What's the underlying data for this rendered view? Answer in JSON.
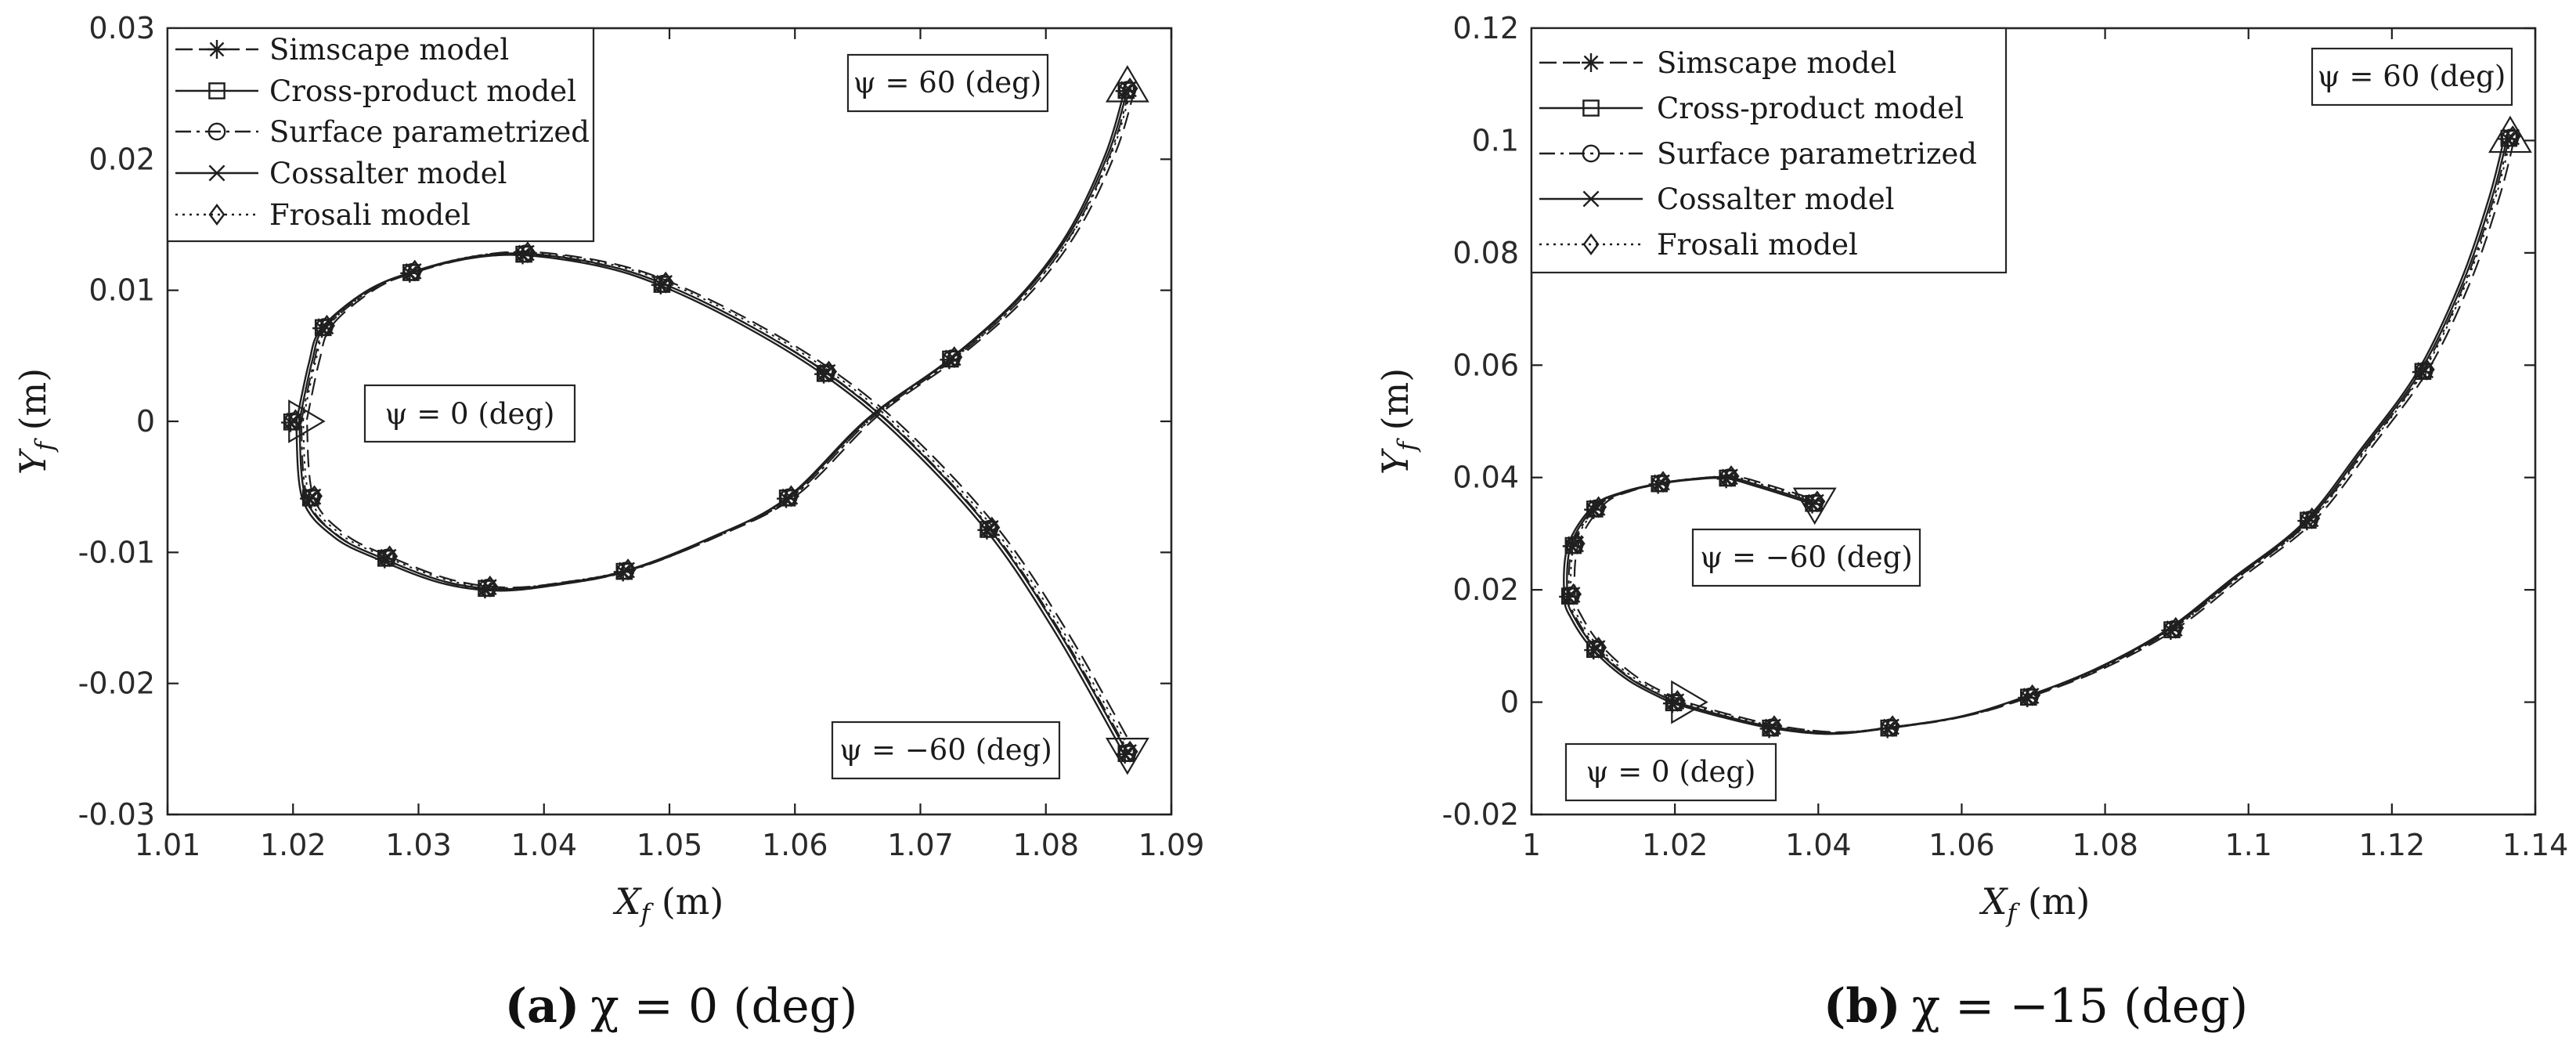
{
  "chart_data": [
    {
      "type": "line",
      "panel": "a",
      "caption_letter": "(a)",
      "caption_math": "χ = 0 (deg)",
      "xlabel_main": "X",
      "xlabel_sub": "f",
      "xlabel_unit": " (m)",
      "ylabel_main": "Y",
      "ylabel_sub": "f",
      "ylabel_unit": " (m)",
      "xlim": [
        1.01,
        1.09
      ],
      "ylim": [
        -0.03,
        0.03
      ],
      "xticks": [
        1.01,
        1.02,
        1.03,
        1.04,
        1.05,
        1.06,
        1.07,
        1.08,
        1.09
      ],
      "xtick_labels": [
        "1.01",
        "1.02",
        "1.03",
        "1.04",
        "1.05",
        "1.06",
        "1.07",
        "1.08",
        "1.09"
      ],
      "yticks": [
        -0.03,
        -0.02,
        -0.01,
        0,
        0.01,
        0.02,
        0.03
      ],
      "ytick_labels": [
        "-0.03",
        "-0.02",
        "-0.01",
        "0",
        "0.01",
        "0.02",
        "0.03"
      ],
      "legend_position": "top-left",
      "legend": [
        {
          "label": "Simscape model",
          "linestyle": "dashed",
          "marker": "asterisk"
        },
        {
          "label": "Cross-product model",
          "linestyle": "solid",
          "marker": "square"
        },
        {
          "label": "Surface parametrized",
          "linestyle": "dashdot",
          "marker": "circle"
        },
        {
          "label": "Cossalter model",
          "linestyle": "solid",
          "marker": "x"
        },
        {
          "label": "Frosali model",
          "linestyle": "dotted",
          "marker": "diamond"
        }
      ],
      "annotations": [
        {
          "text": "ψ = 60 (deg)",
          "position": "top-right"
        },
        {
          "text": "ψ = 0 (deg)",
          "position": "center-left"
        },
        {
          "text": "ψ = −60 (deg)",
          "position": "bottom-right"
        }
      ],
      "start_markers": [
        {
          "shape": "triangle-up",
          "x": 1.0865,
          "y": 0.0255
        },
        {
          "shape": "triangle-right",
          "x": 1.0205,
          "y": 0.0
        },
        {
          "shape": "triangle-down",
          "x": 1.0865,
          "y": -0.0253
        }
      ],
      "series": [
        {
          "name": "Path ψ = 60 (deg)",
          "x": [
            1.0865,
            1.085,
            1.082,
            1.078,
            1.0725,
            1.066,
            1.0595,
            1.053,
            1.0465,
            1.041,
            1.0365,
            1.032,
            1.027,
            1.0235,
            1.021,
            1.0205
          ],
          "y": [
            0.0253,
            0.0205,
            0.0145,
            0.0095,
            0.0048,
            0.0003,
            -0.0058,
            -0.009,
            -0.0114,
            -0.0124,
            -0.0128,
            -0.0122,
            -0.0104,
            -0.0087,
            -0.0058,
            0.0
          ]
        },
        {
          "name": "Path ψ = −60 (deg)",
          "x": [
            1.0205,
            1.0215,
            1.0225,
            1.026,
            1.0295,
            1.034,
            1.0385,
            1.0445,
            1.0495,
            1.056,
            1.0625,
            1.0685,
            1.0755,
            1.081,
            1.0865
          ],
          "y": [
            0.0,
            0.0045,
            0.0072,
            0.01,
            0.0114,
            0.0125,
            0.0128,
            0.012,
            0.0105,
            0.0075,
            0.0037,
            -0.001,
            -0.0082,
            -0.016,
            -0.0253
          ]
        }
      ],
      "marker_points": [
        [
          1.0865,
          0.0253
        ],
        [
          1.0725,
          0.0048
        ],
        [
          1.0595,
          -0.0058
        ],
        [
          1.0465,
          -0.0114
        ],
        [
          1.0355,
          -0.0127
        ],
        [
          1.0275,
          -0.0104
        ],
        [
          1.0215,
          -0.0058
        ],
        [
          1.02,
          0.0
        ],
        [
          1.0225,
          0.0072
        ],
        [
          1.0295,
          0.0114
        ],
        [
          1.0385,
          0.0128
        ],
        [
          1.0495,
          0.0105
        ],
        [
          1.0625,
          0.0037
        ],
        [
          1.0755,
          -0.0082
        ],
        [
          1.0865,
          -0.0253
        ]
      ]
    },
    {
      "type": "line",
      "panel": "b",
      "caption_letter": "(b)",
      "caption_math": "χ = −15 (deg)",
      "xlabel_main": "X",
      "xlabel_sub": "f",
      "xlabel_unit": " (m)",
      "ylabel_main": "Y",
      "ylabel_sub": "f",
      "ylabel_unit": " (m)",
      "xlim": [
        1.0,
        1.14
      ],
      "ylim": [
        -0.02,
        0.12
      ],
      "xticks": [
        1.0,
        1.02,
        1.04,
        1.06,
        1.08,
        1.1,
        1.12,
        1.14
      ],
      "xtick_labels": [
        "1",
        "1.02",
        "1.04",
        "1.06",
        "1.08",
        "1.1",
        "1.12",
        "1.14"
      ],
      "yticks": [
        -0.02,
        0,
        0.02,
        0.04,
        0.06,
        0.08,
        0.1,
        0.12
      ],
      "ytick_labels": [
        "-0.02",
        "0",
        "0.02",
        "0.04",
        "0.06",
        "0.08",
        "0.1",
        "0.12"
      ],
      "legend_position": "top-left",
      "legend": [
        {
          "label": "Simscape model",
          "linestyle": "dashed",
          "marker": "asterisk"
        },
        {
          "label": "Cross-product model",
          "linestyle": "solid",
          "marker": "square"
        },
        {
          "label": "Surface parametrized",
          "linestyle": "dashdot",
          "marker": "circle"
        },
        {
          "label": "Cossalter model",
          "linestyle": "solid",
          "marker": "x"
        },
        {
          "label": "Frosali model",
          "linestyle": "dotted",
          "marker": "diamond"
        }
      ],
      "annotations": [
        {
          "text": "ψ = 60 (deg)",
          "position": "top-right"
        },
        {
          "text": "ψ = −60 (deg)",
          "position": "center"
        },
        {
          "text": "ψ = 0 (deg)",
          "position": "bottom-left"
        }
      ],
      "start_markers": [
        {
          "shape": "triangle-up",
          "x": 1.1365,
          "y": 0.1005
        },
        {
          "shape": "triangle-down",
          "x": 1.0395,
          "y": 0.0355
        },
        {
          "shape": "triangle-right",
          "x": 1.021,
          "y": 0.0
        }
      ],
      "series": [
        {
          "name": "Path ψ = 60 (deg)",
          "x": [
            1.136,
            1.134,
            1.13,
            1.124,
            1.116,
            1.108,
            1.098,
            1.089,
            1.079,
            1.069,
            1.06,
            1.05,
            1.042,
            1.034,
            1.027,
            1.02
          ],
          "y": [
            0.1,
            0.09,
            0.075,
            0.059,
            0.045,
            0.032,
            0.022,
            0.013,
            0.006,
            0.001,
            -0.0025,
            -0.0045,
            -0.0055,
            -0.0045,
            -0.0025,
            0.0
          ]
        },
        {
          "name": "Path ψ = −60 (deg)",
          "x": [
            1.02,
            1.014,
            1.009,
            1.006,
            1.005,
            1.0055,
            1.009,
            1.013,
            1.018,
            1.023,
            1.0275,
            1.032,
            1.0395
          ],
          "y": [
            0.0,
            0.004,
            0.0095,
            0.015,
            0.019,
            0.028,
            0.035,
            0.0375,
            0.039,
            0.0398,
            0.04,
            0.0385,
            0.0355
          ]
        }
      ],
      "marker_points": [
        [
          1.1365,
          0.1005
        ],
        [
          1.1245,
          0.059
        ],
        [
          1.1085,
          0.0325
        ],
        [
          1.0895,
          0.013
        ],
        [
          1.0695,
          0.001
        ],
        [
          1.05,
          -0.0045
        ],
        [
          1.0335,
          -0.0045
        ],
        [
          1.02,
          0.0
        ],
        [
          1.009,
          0.0095
        ],
        [
          1.0055,
          0.019
        ],
        [
          1.006,
          0.028
        ],
        [
          1.009,
          0.0345
        ],
        [
          1.018,
          0.039
        ],
        [
          1.0275,
          0.04
        ],
        [
          1.0395,
          0.0355
        ]
      ]
    }
  ]
}
